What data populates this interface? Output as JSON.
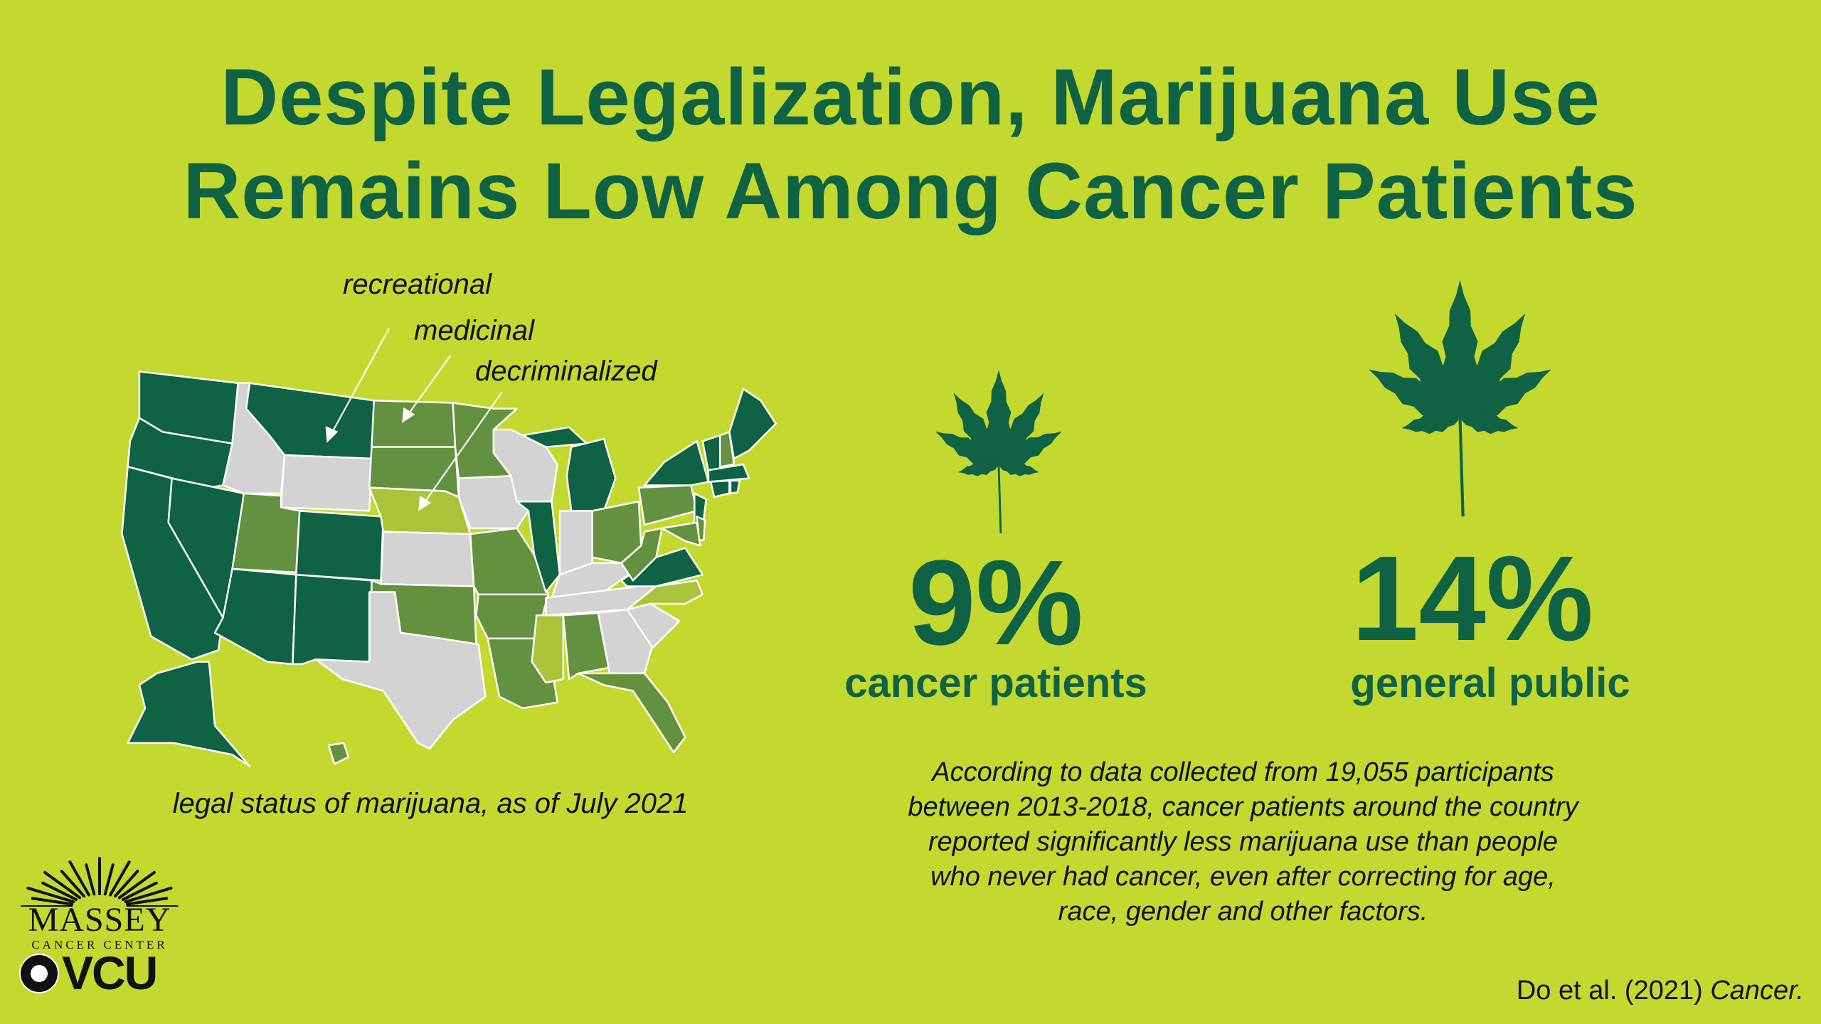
{
  "title": {
    "line1": "Despite Legalization, Marijuana Use",
    "line2": "Remains Low Among Cancer Patients"
  },
  "map": {
    "legend": {
      "recreational": "recreational",
      "medicinal": "medicinal",
      "decriminalized": "decriminalized"
    },
    "caption": "legal status of marijuana, as of July 2021",
    "colors": {
      "recreational": "#0f6344",
      "medicinal": "#64913f",
      "decriminalized": "#a9c43a",
      "illegal": "#d3d3d3"
    },
    "states": {
      "WA": "recreational",
      "OR": "recreational",
      "CA": "recreational",
      "NV": "recreational",
      "ID": "illegal",
      "MT": "recreational",
      "WY": "illegal",
      "UT": "medicinal",
      "CO": "recreational",
      "AZ": "recreational",
      "NM": "recreational",
      "ND": "medicinal",
      "SD": "medicinal",
      "NE": "decriminalized",
      "KS": "illegal",
      "OK": "medicinal",
      "TX": "illegal",
      "MN": "medicinal",
      "IA": "illegal",
      "MO": "medicinal",
      "AR": "medicinal",
      "LA": "medicinal",
      "WI": "illegal",
      "IL": "recreational",
      "MI": "recreational",
      "IN": "illegal",
      "OH": "medicinal",
      "KY": "illegal",
      "TN": "illegal",
      "MS": "decriminalized",
      "AL": "medicinal",
      "GA": "illegal",
      "SC": "illegal",
      "FL": "medicinal",
      "NC": "decriminalized",
      "VA": "recreational",
      "WV": "medicinal",
      "PA": "medicinal",
      "NY": "recreational",
      "NJ": "recreational",
      "MD": "medicinal",
      "DE": "medicinal",
      "VT": "recreational",
      "NH": "medicinal",
      "ME": "recreational",
      "MA": "recreational",
      "CT": "recreational",
      "RI": "recreational",
      "AK": "recreational",
      "HI": "medicinal"
    }
  },
  "stats": [
    {
      "value": "9%",
      "label": "cancer patients",
      "icon": "cannabis-leaf-icon"
    },
    {
      "value": "14%",
      "label": "general public",
      "icon": "cannabis-leaf-icon"
    }
  ],
  "description": {
    "lines": [
      "According to data collected from 19,055 participants",
      "between 2013-2018, cancer patients around the country",
      "reported significantly less marijuana use than people",
      "who never had cancer, even after correcting for age,",
      "race, gender and other factors."
    ]
  },
  "citation": {
    "authors": "Do et al. (2021) ",
    "journal": "Cancer."
  },
  "logo": {
    "name": "MASSEY",
    "sub": "CANCER CENTER",
    "university": "VCU"
  },
  "colors": {
    "background": "#c3d92f",
    "accent": "#0f6344"
  }
}
